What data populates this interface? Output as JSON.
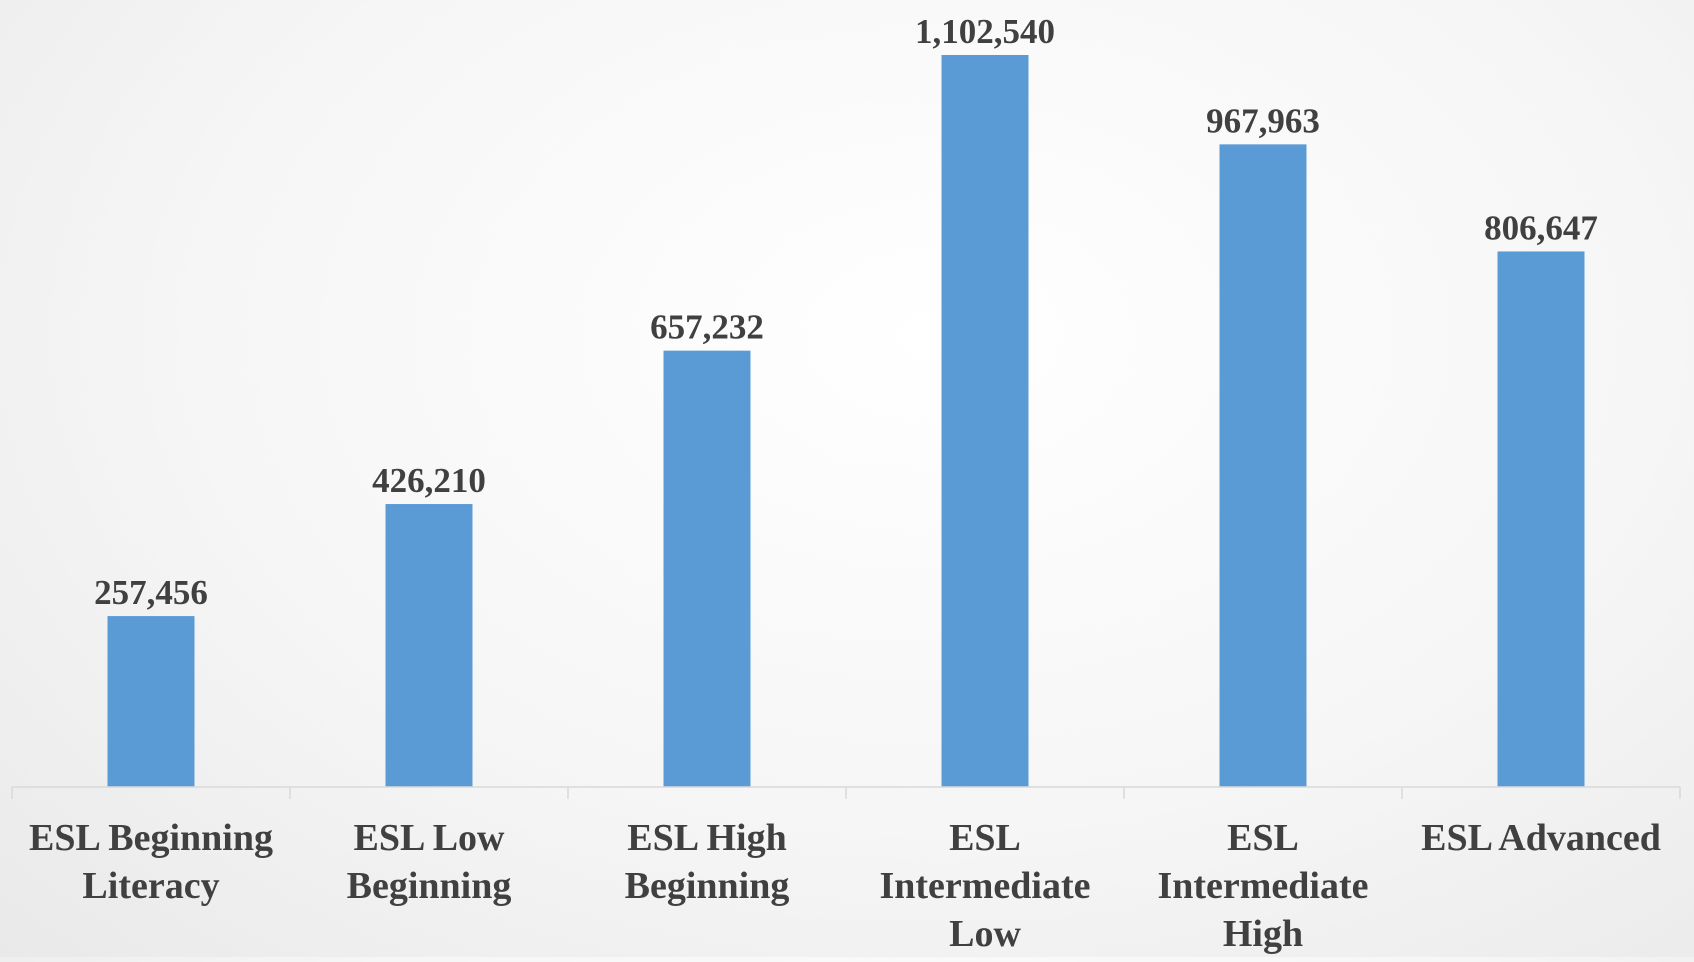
{
  "chart_data": {
    "type": "bar",
    "title": "",
    "xlabel": "",
    "ylabel": "",
    "categories": [
      [
        "ESL Beginning",
        "Literacy"
      ],
      [
        "ESL Low",
        "Beginning"
      ],
      [
        "ESL High",
        "Beginning"
      ],
      [
        "ESL",
        "Intermediate",
        "Low"
      ],
      [
        "ESL",
        "Intermediate",
        "High"
      ],
      [
        "ESL Advanced"
      ]
    ],
    "values": [
      257456,
      426210,
      657232,
      1102540,
      967963,
      806647
    ],
    "data_labels": [
      "257,456",
      "426,210",
      "657,232",
      "1,102,540",
      "967,963",
      "806,647"
    ],
    "ylim": [
      0,
      1102540
    ],
    "grid": false,
    "legend": "none",
    "colors": {
      "bar": "#5b9bd5",
      "axis": "#d9d9d9",
      "text": "#404040"
    }
  }
}
